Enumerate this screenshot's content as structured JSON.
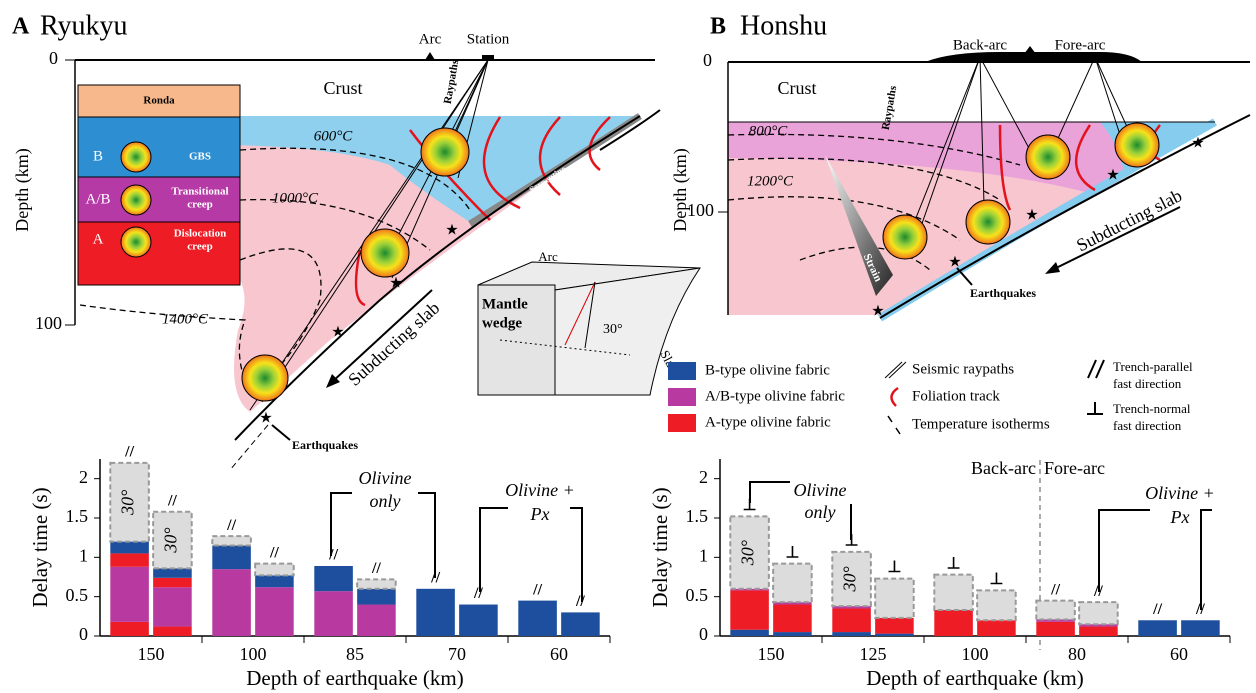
{
  "panel_a": {
    "letter": "A",
    "title": "Ryukyu",
    "arc": "Arc",
    "station": "Station",
    "depth_ticks": [
      "0",
      "100"
    ],
    "depth_label": "Depth (km)",
    "crust": "Crust",
    "ronda": {
      "title": "Ronda",
      "rows": [
        {
          "fabric": "B",
          "mechanism": [
            "GBS"
          ]
        },
        {
          "fabric": "A/B",
          "mechanism": [
            "Transitional",
            "creep"
          ]
        },
        {
          "fabric": "A",
          "mechanism": [
            "Dislocation",
            "creep"
          ]
        }
      ]
    },
    "raypaths": "Raypaths",
    "isotherms": [
      "600°C",
      "1000°C",
      "1400°C"
    ],
    "serpentine": "Serpentine",
    "slab": "Subducting slab",
    "earthquakes": "Earthquakes",
    "inset": {
      "arc": "Arc",
      "wedge": [
        "Mantle",
        "wedge"
      ],
      "angle": "30°",
      "slab": "Slab"
    }
  },
  "panel_b": {
    "letter": "B",
    "title": "Honshu",
    "back_arc": "Back-arc",
    "fore_arc": "Fore-arc",
    "depth_ticks": [
      "0",
      "100"
    ],
    "depth_label": "Depth (km)",
    "crust": "Crust",
    "raypaths": "Raypaths",
    "isotherms": [
      "800°C",
      "1200°C"
    ],
    "strain": "Strain",
    "slab": "Subducting slab",
    "earthquakes": "Earthquakes"
  },
  "legend": {
    "fabrics": [
      {
        "name": "B-type olivine fabric",
        "color": "#1d4f9e"
      },
      {
        "name": "A/B-type olivine fabric",
        "color": "#b83aa0"
      },
      {
        "name": "A-type olivine fabric",
        "color": "#ee1c25"
      }
    ],
    "symbols": [
      [
        "Seismic raypaths"
      ],
      [
        "Foliation track"
      ],
      [
        "Temperature isotherms"
      ],
      [
        "Trench-parallel",
        "fast direction"
      ],
      [
        "Trench-normal",
        "fast direction"
      ]
    ]
  },
  "chart_data": [
    {
      "type": "bar",
      "ylabel": "Delay time (s)",
      "xlabel": "Depth of earthquake (km)",
      "ylim": [
        0,
        2.25
      ],
      "yticks": [
        0,
        0.5,
        1,
        1.5,
        2
      ],
      "categories": [
        "150",
        "100",
        "85",
        "70",
        "60"
      ],
      "annotations": {
        "olivine_only": [
          "Olivine",
          "only"
        ],
        "olivine_px": [
          "Olivine +",
          "Px"
        ]
      },
      "bars": [
        {
          "symbol": "//",
          "label": "30°",
          "segments": [
            {
              "color": "#ee1c25",
              "value": 0.18
            },
            {
              "color": "#b83aa0",
              "value": 0.7
            },
            {
              "color": "#ee1c25",
              "value": 0.17
            },
            {
              "color": "#1d4f9e",
              "value": 0.15
            },
            {
              "color": "#dcdcdc",
              "style": "dashed",
              "value": 1.0
            }
          ]
        },
        {
          "symbol": "//",
          "label": "30°",
          "segments": [
            {
              "color": "#ee1c25",
              "value": 0.12
            },
            {
              "color": "#b83aa0",
              "value": 0.5
            },
            {
              "color": "#ee1c25",
              "value": 0.12
            },
            {
              "color": "#1d4f9e",
              "value": 0.12
            },
            {
              "color": "#dcdcdc",
              "style": "dashed",
              "value": 0.72
            }
          ]
        },
        {
          "symbol": "//",
          "segments": [
            {
              "color": "#b83aa0",
              "value": 0.85
            },
            {
              "color": "#1d4f9e",
              "value": 0.3
            },
            {
              "color": "#dcdcdc",
              "style": "dashed",
              "value": 0.12
            }
          ]
        },
        {
          "symbol": "//",
          "segments": [
            {
              "color": "#b83aa0",
              "value": 0.62
            },
            {
              "color": "#1d4f9e",
              "value": 0.15
            },
            {
              "color": "#dcdcdc",
              "style": "dashed",
              "value": 0.15
            }
          ]
        },
        {
          "symbol": "//",
          "segments": [
            {
              "color": "#b83aa0",
              "value": 0.57
            },
            {
              "color": "#1d4f9e",
              "value": 0.32
            }
          ]
        },
        {
          "symbol": "//",
          "segments": [
            {
              "color": "#b83aa0",
              "value": 0.4
            },
            {
              "color": "#1d4f9e",
              "value": 0.2
            },
            {
              "color": "#dcdcdc",
              "style": "dashed",
              "value": 0.12
            }
          ]
        },
        {
          "symbol": "//",
          "segments": [
            {
              "color": "#1d4f9e",
              "value": 0.6
            }
          ]
        },
        {
          "symbol": "//",
          "segments": [
            {
              "color": "#1d4f9e",
              "value": 0.4
            }
          ]
        },
        {
          "symbol": "//",
          "segments": [
            {
              "color": "#1d4f9e",
              "value": 0.45
            }
          ]
        },
        {
          "symbol": "//",
          "segments": [
            {
              "color": "#1d4f9e",
              "value": 0.3
            }
          ]
        }
      ]
    },
    {
      "type": "bar",
      "ylabel": "Delay time (s)",
      "xlabel": "Depth of earthquake (km)",
      "ylim": [
        0,
        2.25
      ],
      "yticks": [
        0,
        0.5,
        1,
        1.5,
        2
      ],
      "categories": [
        "150",
        "125",
        "100",
        "80",
        "60"
      ],
      "annotations": {
        "olivine_only": [
          "Olivine",
          "only"
        ],
        "olivine_px": [
          "Olivine +",
          "Px"
        ],
        "back_arc": "Back-arc",
        "fore_arc": "Fore-arc"
      },
      "bars": [
        {
          "symbol": "⊥",
          "label": "30°",
          "segments": [
            {
              "color": "#1d4f9e",
              "value": 0.08
            },
            {
              "color": "#ee1c25",
              "value": 0.5
            },
            {
              "color": "#b83aa0",
              "value": 0.02
            },
            {
              "color": "#dcdcdc",
              "style": "dashed",
              "value": 0.92
            }
          ]
        },
        {
          "symbol": "⊥",
          "segments": [
            {
              "color": "#1d4f9e",
              "value": 0.05
            },
            {
              "color": "#ee1c25",
              "value": 0.35
            },
            {
              "color": "#b83aa0",
              "value": 0.03
            },
            {
              "color": "#dcdcdc",
              "style": "dashed",
              "value": 0.49
            }
          ]
        },
        {
          "symbol": "⊥",
          "label": "30°",
          "segments": [
            {
              "color": "#1d4f9e",
              "value": 0.05
            },
            {
              "color": "#ee1c25",
              "value": 0.3
            },
            {
              "color": "#b83aa0",
              "value": 0.03
            },
            {
              "color": "#dcdcdc",
              "style": "dashed",
              "value": 0.69
            }
          ]
        },
        {
          "symbol": "⊥",
          "segments": [
            {
              "color": "#1d4f9e",
              "value": 0.03
            },
            {
              "color": "#ee1c25",
              "value": 0.2
            },
            {
              "color": "#dcdcdc",
              "style": "dashed",
              "value": 0.5
            }
          ]
        },
        {
          "symbol": "⊥",
          "segments": [
            {
              "color": "#ee1c25",
              "value": 0.33
            },
            {
              "color": "#dcdcdc",
              "style": "dashed",
              "value": 0.45
            }
          ]
        },
        {
          "symbol": "⊥",
          "segments": [
            {
              "color": "#ee1c25",
              "value": 0.2
            },
            {
              "color": "#dcdcdc",
              "style": "dashed",
              "value": 0.38
            }
          ]
        },
        {
          "symbol": "//",
          "segments": [
            {
              "color": "#ee1c25",
              "value": 0.18
            },
            {
              "color": "#b83aa0",
              "value": 0.03
            },
            {
              "color": "#dcdcdc",
              "style": "dashed",
              "value": 0.24
            }
          ]
        },
        {
          "symbol": "//",
          "segments": [
            {
              "color": "#ee1c25",
              "value": 0.12
            },
            {
              "color": "#b83aa0",
              "value": 0.03
            },
            {
              "color": "#dcdcdc",
              "style": "dashed",
              "value": 0.28
            }
          ]
        },
        {
          "symbol": "//",
          "segments": [
            {
              "color": "#1d4f9e",
              "value": 0.2
            }
          ]
        },
        {
          "symbol": "//",
          "segments": [
            {
              "color": "#1d4f9e",
              "value": 0.2
            }
          ]
        }
      ]
    }
  ]
}
